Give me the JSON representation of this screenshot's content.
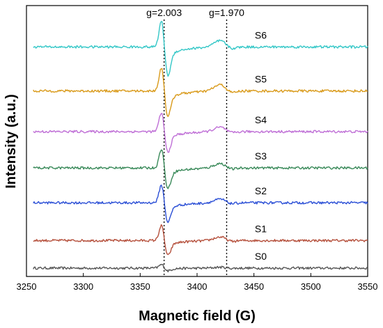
{
  "chart_data": {
    "type": "line",
    "xlabel": "Magnetic field (G)",
    "ylabel": "Intensity (a.u.)",
    "xlim": [
      3250,
      3550
    ],
    "x_ticks": [
      "3250",
      "3300",
      "3350",
      "3400",
      "3450",
      "3500",
      "3550"
    ],
    "y_ticks": "none",
    "grid": false,
    "legend": "none",
    "annotations": [
      {
        "text": "g=2.003",
        "x": 3371,
        "line": "dotted-vertical"
      },
      {
        "text": "g=1.970",
        "x": 3426,
        "line": "dotted-vertical"
      }
    ],
    "series": [
      {
        "name": "S0",
        "color": "#555555",
        "baseline": 0.0,
        "pos_peak": {
          "x": 3369,
          "y": 0.08
        },
        "neg_peak": {
          "x": 3374,
          "y": -0.06
        },
        "hump": {
          "x": 3421,
          "y": 0.02
        }
      },
      {
        "name": "S1",
        "color": "#b5503c",
        "baseline": 0.57,
        "pos_peak": {
          "x": 3369,
          "y": 0.35
        },
        "neg_peak": {
          "x": 3374,
          "y": -0.33
        },
        "hump": {
          "x": 3421,
          "y": 0.08
        }
      },
      {
        "name": "S2",
        "color": "#2b4fd6",
        "baseline": 1.35,
        "pos_peak": {
          "x": 3369,
          "y": 0.42
        },
        "neg_peak": {
          "x": 3374,
          "y": -0.42
        },
        "hump": {
          "x": 3421,
          "y": 0.08
        }
      },
      {
        "name": "S3",
        "color": "#3a8a5a",
        "baseline": 2.07,
        "pos_peak": {
          "x": 3369,
          "y": 0.45
        },
        "neg_peak": {
          "x": 3374,
          "y": -0.45
        },
        "hump": {
          "x": 3421,
          "y": 0.1
        }
      },
      {
        "name": "S4",
        "color": "#bf6fd6",
        "baseline": 2.82,
        "pos_peak": {
          "x": 3369,
          "y": 0.45
        },
        "neg_peak": {
          "x": 3374,
          "y": -0.45
        },
        "hump": {
          "x": 3421,
          "y": 0.1
        }
      },
      {
        "name": "S5",
        "color": "#d99a1a",
        "baseline": 3.66,
        "pos_peak": {
          "x": 3369,
          "y": 0.55
        },
        "neg_peak": {
          "x": 3374,
          "y": -0.55
        },
        "hump": {
          "x": 3421,
          "y": 0.14
        }
      },
      {
        "name": "S6",
        "color": "#33c7c7",
        "baseline": 4.57,
        "pos_peak": {
          "x": 3369,
          "y": 0.62
        },
        "neg_peak": {
          "x": 3374,
          "y": -0.62
        },
        "hump": {
          "x": 3421,
          "y": 0.14
        }
      }
    ]
  }
}
